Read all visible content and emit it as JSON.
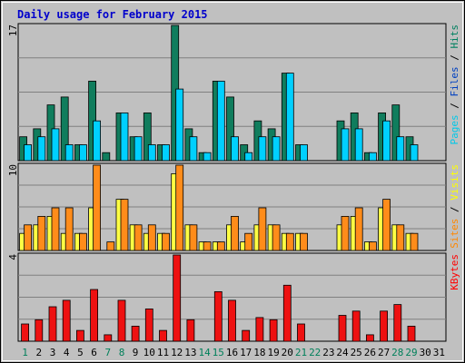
{
  "chart_data": {
    "type": "bar",
    "title": "Daily usage for February 2015",
    "x": [
      "1",
      "2",
      "3",
      "4",
      "5",
      "6",
      "7",
      "8",
      "9",
      "10",
      "11",
      "12",
      "13",
      "14",
      "15",
      "16",
      "17",
      "18",
      "19",
      "20",
      "21",
      "22",
      "23",
      "24",
      "25",
      "26",
      "27",
      "28",
      "29",
      "30",
      "31"
    ],
    "weekend_days": [
      "1",
      "7",
      "8",
      "14",
      "15",
      "21",
      "22",
      "28",
      "29"
    ],
    "panels": [
      {
        "id": "hits-files-pages",
        "ymax": 17,
        "ymax_label": "17",
        "legend": [
          {
            "text": "Pages",
            "color": "#00c8e8"
          },
          {
            "text": " / ",
            "color": "#000000"
          },
          {
            "text": "Files",
            "color": "#0040c0"
          },
          {
            "text": " / ",
            "color": "#000000"
          },
          {
            "text": "Hits",
            "color": "#008060"
          }
        ],
        "series": [
          {
            "name": "Hits",
            "color": "#107d5d",
            "values": [
              3,
              4,
              7,
              8,
              2,
              10,
              1,
              6,
              3,
              6,
              2,
              17,
              4,
              1,
              10,
              8,
              2,
              5,
              4,
              11,
              2,
              0,
              0,
              5,
              6,
              1,
              6,
              7,
              3,
              0,
              0
            ]
          },
          {
            "name": "Files",
            "color": "#00d0ff",
            "values": [
              2,
              3,
              4,
              2,
              2,
              5,
              0,
              6,
              3,
              2,
              2,
              9,
              3,
              1,
              10,
              3,
              1,
              3,
              3,
              11,
              2,
              0,
              0,
              4,
              4,
              1,
              5,
              3,
              2,
              0,
              0
            ]
          }
        ]
      },
      {
        "id": "visits-sites",
        "ymax": 10,
        "ymax_label": "10",
        "legend": [
          {
            "text": "Sites",
            "color": "#ff8800"
          },
          {
            "text": " / ",
            "color": "#000000"
          },
          {
            "text": "Visits",
            "color": "#ffff00"
          }
        ],
        "series": [
          {
            "name": "Visits",
            "color": "#ffff44",
            "values": [
              2,
              3,
              4,
              2,
              2,
              5,
              0,
              6,
              3,
              2,
              2,
              9,
              3,
              1,
              1,
              3,
              1,
              3,
              3,
              2,
              2,
              0,
              0,
              3,
              4,
              1,
              5,
              3,
              2,
              0,
              0
            ]
          },
          {
            "name": "Sites",
            "color": "#ff8c1a",
            "values": [
              3,
              4,
              5,
              5,
              2,
              10,
              1,
              6,
              3,
              3,
              2,
              10,
              3,
              1,
              1,
              4,
              2,
              5,
              3,
              2,
              2,
              0,
              0,
              4,
              5,
              1,
              6,
              3,
              2,
              0,
              0
            ]
          }
        ]
      },
      {
        "id": "kbytes",
        "ymax": 4,
        "ymax_label": "4",
        "legend": [
          {
            "text": "KBytes",
            "color": "#ff0000"
          }
        ],
        "series": [
          {
            "name": "KBytes",
            "color": "#ee1111",
            "values": [
              0.8,
              1.0,
              1.6,
              1.9,
              0.5,
              2.4,
              0.3,
              1.9,
              0.7,
              1.5,
              0.5,
              4.0,
              1.0,
              0,
              2.3,
              1.9,
              0.5,
              1.1,
              1.0,
              2.6,
              0.8,
              0,
              0,
              1.2,
              1.4,
              0.3,
              1.4,
              1.7,
              0.7,
              0,
              0
            ]
          }
        ]
      }
    ]
  }
}
